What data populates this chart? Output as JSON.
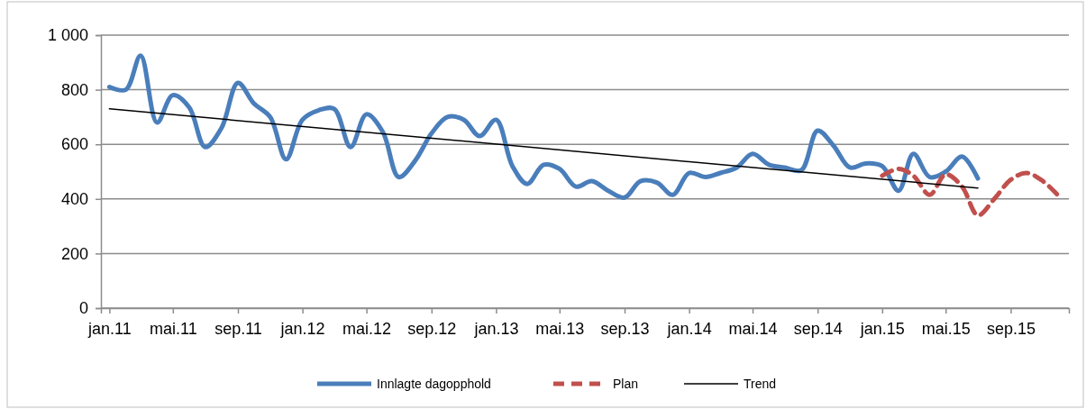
{
  "chart_data": {
    "type": "line",
    "xlim": [
      "2010-12-16",
      "2015-12-20"
    ],
    "xticks": [
      {
        "value": "2011-01",
        "label": "jan.11"
      },
      {
        "value": "2011-05",
        "label": "mai.11"
      },
      {
        "value": "2011-09",
        "label": "sep.11"
      },
      {
        "value": "2012-01",
        "label": "jan.12"
      },
      {
        "value": "2012-05",
        "label": "mai.12"
      },
      {
        "value": "2012-09",
        "label": "sep.12"
      },
      {
        "value": "2013-01",
        "label": "jan.13"
      },
      {
        "value": "2013-05",
        "label": "mai.13"
      },
      {
        "value": "2013-09",
        "label": "sep.13"
      },
      {
        "value": "2014-01",
        "label": "jan.14"
      },
      {
        "value": "2014-05",
        "label": "mai.14"
      },
      {
        "value": "2014-09",
        "label": "sep.14"
      },
      {
        "value": "2015-01",
        "label": "jan.15"
      },
      {
        "value": "2015-05",
        "label": "mai.15"
      },
      {
        "value": "2015-09",
        "label": "sep.15"
      }
    ],
    "ylim": [
      0,
      1000
    ],
    "yticks": [
      0,
      200,
      400,
      600,
      800,
      {
        "value": 1000,
        "label": "1 000"
      }
    ],
    "grid": "y",
    "legend": "bottom",
    "series": [
      {
        "name": "Innlagte dagopphold",
        "color": "#4a7ebb",
        "line_style": "solid",
        "x": [
          "2011-01",
          "2011-02",
          "2011-03",
          "2011-04",
          "2011-05",
          "2011-06",
          "2011-07",
          "2011-08",
          "2011-09",
          "2011-10",
          "2011-11",
          "2011-12",
          "2012-01",
          "2012-02",
          "2012-03",
          "2012-04",
          "2012-05",
          "2012-06",
          "2012-07",
          "2012-08",
          "2012-09",
          "2012-10",
          "2012-11",
          "2012-12",
          "2013-01",
          "2013-02",
          "2013-03",
          "2013-04",
          "2013-05",
          "2013-06",
          "2013-07",
          "2013-08",
          "2013-09",
          "2013-10",
          "2013-11",
          "2013-12",
          "2014-01",
          "2014-02",
          "2014-03",
          "2014-04",
          "2014-05",
          "2014-06",
          "2014-07",
          "2014-08",
          "2014-09",
          "2014-10",
          "2014-11",
          "2014-12",
          "2015-01",
          "2015-02",
          "2015-03",
          "2015-04",
          "2015-05",
          "2015-06",
          "2015-07"
        ],
        "values": [
          810,
          800,
          925,
          680,
          780,
          735,
          590,
          660,
          825,
          750,
          700,
          545,
          690,
          725,
          730,
          590,
          710,
          645,
          480,
          540,
          640,
          700,
          690,
          630,
          690,
          520,
          455,
          525,
          510,
          445,
          465,
          430,
          405,
          465,
          460,
          415,
          495,
          480,
          495,
          515,
          565,
          525,
          515,
          505,
          650,
          595,
          515,
          530,
          520,
          430,
          565,
          480,
          500,
          555,
          475
        ]
      },
      {
        "name": "Plan",
        "color": "#c0504d",
        "line_style": "dashed",
        "x": [
          "2015-01",
          "2015-02",
          "2015-03",
          "2015-04",
          "2015-05",
          "2015-06",
          "2015-07",
          "2015-08",
          "2015-09",
          "2015-10",
          "2015-11",
          "2015-12"
        ],
        "values": [
          485,
          510,
          485,
          415,
          490,
          445,
          340,
          400,
          470,
          495,
          465,
          410
        ]
      },
      {
        "name": "Trend",
        "color": "#000000",
        "line_style": "solid",
        "x": [
          "2011-01",
          "2015-07"
        ],
        "values": [
          730,
          440
        ]
      }
    ]
  }
}
